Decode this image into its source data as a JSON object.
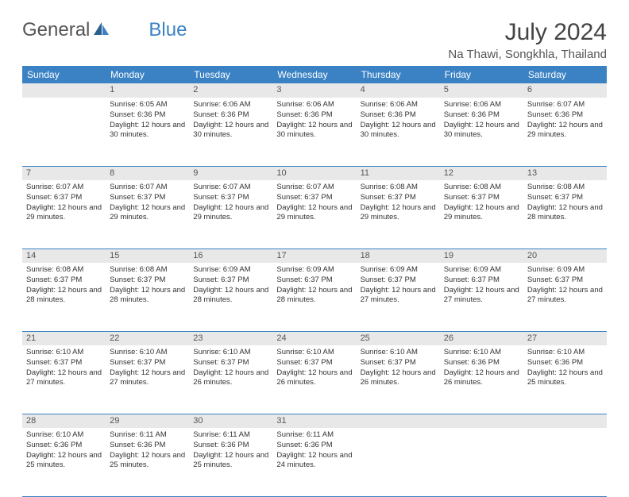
{
  "brand": {
    "text1": "General",
    "text2": "Blue"
  },
  "title": "July 2024",
  "location": "Na Thawi, Songkhla, Thailand",
  "colors": {
    "header_bg": "#3b82c4",
    "header_text": "#ffffff",
    "daynum_bg": "#e8e8e8",
    "border": "#3b82c4",
    "text": "#333333"
  },
  "typography": {
    "title_fontsize": 30,
    "location_fontsize": 15,
    "dayheader_fontsize": 12,
    "daynum_fontsize": 11,
    "detail_fontsize": 9.5
  },
  "day_headers": [
    "Sunday",
    "Monday",
    "Tuesday",
    "Wednesday",
    "Thursday",
    "Friday",
    "Saturday"
  ],
  "weeks": [
    [
      null,
      {
        "n": "1",
        "sr": "Sunrise: 6:05 AM",
        "ss": "Sunset: 6:36 PM",
        "dl": "Daylight: 12 hours and 30 minutes."
      },
      {
        "n": "2",
        "sr": "Sunrise: 6:06 AM",
        "ss": "Sunset: 6:36 PM",
        "dl": "Daylight: 12 hours and 30 minutes."
      },
      {
        "n": "3",
        "sr": "Sunrise: 6:06 AM",
        "ss": "Sunset: 6:36 PM",
        "dl": "Daylight: 12 hours and 30 minutes."
      },
      {
        "n": "4",
        "sr": "Sunrise: 6:06 AM",
        "ss": "Sunset: 6:36 PM",
        "dl": "Daylight: 12 hours and 30 minutes."
      },
      {
        "n": "5",
        "sr": "Sunrise: 6:06 AM",
        "ss": "Sunset: 6:36 PM",
        "dl": "Daylight: 12 hours and 30 minutes."
      },
      {
        "n": "6",
        "sr": "Sunrise: 6:07 AM",
        "ss": "Sunset: 6:36 PM",
        "dl": "Daylight: 12 hours and 29 minutes."
      }
    ],
    [
      {
        "n": "7",
        "sr": "Sunrise: 6:07 AM",
        "ss": "Sunset: 6:37 PM",
        "dl": "Daylight: 12 hours and 29 minutes."
      },
      {
        "n": "8",
        "sr": "Sunrise: 6:07 AM",
        "ss": "Sunset: 6:37 PM",
        "dl": "Daylight: 12 hours and 29 minutes."
      },
      {
        "n": "9",
        "sr": "Sunrise: 6:07 AM",
        "ss": "Sunset: 6:37 PM",
        "dl": "Daylight: 12 hours and 29 minutes."
      },
      {
        "n": "10",
        "sr": "Sunrise: 6:07 AM",
        "ss": "Sunset: 6:37 PM",
        "dl": "Daylight: 12 hours and 29 minutes."
      },
      {
        "n": "11",
        "sr": "Sunrise: 6:08 AM",
        "ss": "Sunset: 6:37 PM",
        "dl": "Daylight: 12 hours and 29 minutes."
      },
      {
        "n": "12",
        "sr": "Sunrise: 6:08 AM",
        "ss": "Sunset: 6:37 PM",
        "dl": "Daylight: 12 hours and 29 minutes."
      },
      {
        "n": "13",
        "sr": "Sunrise: 6:08 AM",
        "ss": "Sunset: 6:37 PM",
        "dl": "Daylight: 12 hours and 28 minutes."
      }
    ],
    [
      {
        "n": "14",
        "sr": "Sunrise: 6:08 AM",
        "ss": "Sunset: 6:37 PM",
        "dl": "Daylight: 12 hours and 28 minutes."
      },
      {
        "n": "15",
        "sr": "Sunrise: 6:08 AM",
        "ss": "Sunset: 6:37 PM",
        "dl": "Daylight: 12 hours and 28 minutes."
      },
      {
        "n": "16",
        "sr": "Sunrise: 6:09 AM",
        "ss": "Sunset: 6:37 PM",
        "dl": "Daylight: 12 hours and 28 minutes."
      },
      {
        "n": "17",
        "sr": "Sunrise: 6:09 AM",
        "ss": "Sunset: 6:37 PM",
        "dl": "Daylight: 12 hours and 28 minutes."
      },
      {
        "n": "18",
        "sr": "Sunrise: 6:09 AM",
        "ss": "Sunset: 6:37 PM",
        "dl": "Daylight: 12 hours and 27 minutes."
      },
      {
        "n": "19",
        "sr": "Sunrise: 6:09 AM",
        "ss": "Sunset: 6:37 PM",
        "dl": "Daylight: 12 hours and 27 minutes."
      },
      {
        "n": "20",
        "sr": "Sunrise: 6:09 AM",
        "ss": "Sunset: 6:37 PM",
        "dl": "Daylight: 12 hours and 27 minutes."
      }
    ],
    [
      {
        "n": "21",
        "sr": "Sunrise: 6:10 AM",
        "ss": "Sunset: 6:37 PM",
        "dl": "Daylight: 12 hours and 27 minutes."
      },
      {
        "n": "22",
        "sr": "Sunrise: 6:10 AM",
        "ss": "Sunset: 6:37 PM",
        "dl": "Daylight: 12 hours and 27 minutes."
      },
      {
        "n": "23",
        "sr": "Sunrise: 6:10 AM",
        "ss": "Sunset: 6:37 PM",
        "dl": "Daylight: 12 hours and 26 minutes."
      },
      {
        "n": "24",
        "sr": "Sunrise: 6:10 AM",
        "ss": "Sunset: 6:37 PM",
        "dl": "Daylight: 12 hours and 26 minutes."
      },
      {
        "n": "25",
        "sr": "Sunrise: 6:10 AM",
        "ss": "Sunset: 6:37 PM",
        "dl": "Daylight: 12 hours and 26 minutes."
      },
      {
        "n": "26",
        "sr": "Sunrise: 6:10 AM",
        "ss": "Sunset: 6:36 PM",
        "dl": "Daylight: 12 hours and 26 minutes."
      },
      {
        "n": "27",
        "sr": "Sunrise: 6:10 AM",
        "ss": "Sunset: 6:36 PM",
        "dl": "Daylight: 12 hours and 25 minutes."
      }
    ],
    [
      {
        "n": "28",
        "sr": "Sunrise: 6:10 AM",
        "ss": "Sunset: 6:36 PM",
        "dl": "Daylight: 12 hours and 25 minutes."
      },
      {
        "n": "29",
        "sr": "Sunrise: 6:11 AM",
        "ss": "Sunset: 6:36 PM",
        "dl": "Daylight: 12 hours and 25 minutes."
      },
      {
        "n": "30",
        "sr": "Sunrise: 6:11 AM",
        "ss": "Sunset: 6:36 PM",
        "dl": "Daylight: 12 hours and 25 minutes."
      },
      {
        "n": "31",
        "sr": "Sunrise: 6:11 AM",
        "ss": "Sunset: 6:36 PM",
        "dl": "Daylight: 12 hours and 24 minutes."
      },
      null,
      null,
      null
    ]
  ]
}
